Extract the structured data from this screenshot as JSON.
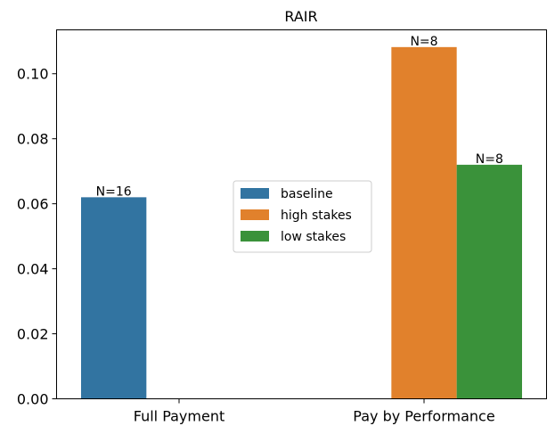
{
  "chart_data": {
    "type": "bar",
    "title": "RAIR",
    "xlabel": "",
    "ylabel": "",
    "categories": [
      "Full Payment",
      "Pay by Performance"
    ],
    "series": [
      {
        "name": "baseline",
        "color": "#3274a1",
        "values": [
          0.062,
          null
        ],
        "labels": [
          "N=16",
          null
        ]
      },
      {
        "name": "high stakes",
        "color": "#e1812c",
        "values": [
          null,
          0.1082
        ],
        "labels": [
          null,
          "N=8"
        ]
      },
      {
        "name": "low stakes",
        "color": "#3a923a",
        "values": [
          null,
          0.072
        ],
        "labels": [
          null,
          "N=8"
        ]
      }
    ],
    "ylim": [
      0,
      0.1135
    ],
    "yticks": [
      0.0,
      0.02,
      0.04,
      0.06,
      0.08,
      0.1
    ],
    "ytick_labels": [
      "0.00",
      "0.02",
      "0.04",
      "0.06",
      "0.08",
      "0.10"
    ],
    "grid": false,
    "legend_position": "center"
  }
}
